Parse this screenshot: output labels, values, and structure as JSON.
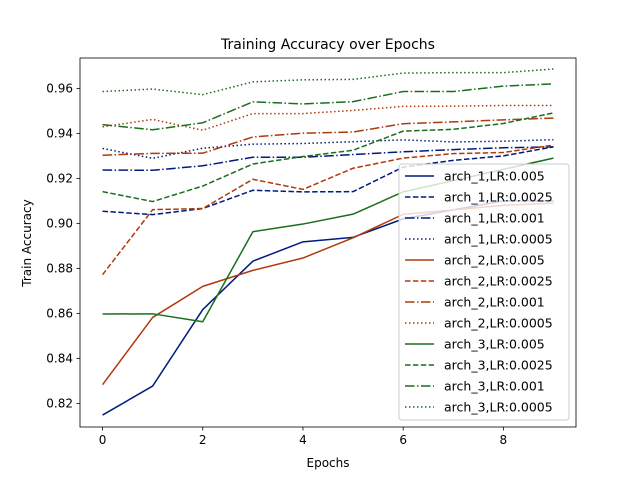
{
  "chart_data": {
    "type": "line",
    "title": "Training Accuracy over Epochs",
    "xlabel": "Epochs",
    "ylabel": "Train Accuracy",
    "xlim": [
      -0.45,
      9.45
    ],
    "ylim": [
      0.8095,
      0.9735
    ],
    "xticks": [
      0,
      2,
      4,
      6,
      8
    ],
    "yticks": [
      0.82,
      0.84,
      0.86,
      0.88,
      0.9,
      0.92,
      0.94,
      0.96
    ],
    "ytick_labels": [
      "0.82",
      "0.84",
      "0.86",
      "0.88",
      "0.90",
      "0.92",
      "0.94",
      "0.96"
    ],
    "grid": false,
    "legend_position": "lower-right",
    "x": [
      0,
      1,
      2,
      3,
      4,
      5,
      6,
      7,
      8,
      9
    ],
    "series": [
      {
        "name": "arch_1,LR:0.005",
        "color": "#001b7d",
        "style": "solid",
        "values": [
          0.8148,
          0.8277,
          0.8617,
          0.8832,
          0.8918,
          0.8938,
          0.902,
          0.906,
          0.91,
          0.91
        ]
      },
      {
        "name": "arch_1,LR:0.0025",
        "color": "#001b7d",
        "style": "dashed",
        "values": [
          0.9054,
          0.9039,
          0.9066,
          0.9147,
          0.914,
          0.9141,
          0.925,
          0.928,
          0.93,
          0.934
        ]
      },
      {
        "name": "arch_1,LR:0.001",
        "color": "#001b7d",
        "style": "dashdot",
        "values": [
          0.9237,
          0.9236,
          0.9256,
          0.9294,
          0.9294,
          0.9306,
          0.9318,
          0.9328,
          0.9336,
          0.934
        ]
      },
      {
        "name": "arch_1,LR:0.0005",
        "color": "#001b7d",
        "style": "dotted",
        "values": [
          0.9333,
          0.9289,
          0.9334,
          0.9352,
          0.9355,
          0.9363,
          0.9371,
          0.9362,
          0.9365,
          0.9372
        ]
      },
      {
        "name": "arch_2,LR:0.005",
        "color": "#ad3b0c",
        "style": "solid",
        "values": [
          0.8283,
          0.8582,
          0.872,
          0.8791,
          0.8846,
          0.8936,
          0.904,
          0.906,
          0.908,
          0.909
        ]
      },
      {
        "name": "arch_2,LR:0.0025",
        "color": "#ad3b0c",
        "style": "dashed",
        "values": [
          0.8772,
          0.9061,
          0.9066,
          0.9196,
          0.9151,
          0.9245,
          0.929,
          0.931,
          0.9315,
          0.9348
        ]
      },
      {
        "name": "arch_2,LR:0.001",
        "color": "#ad3b0c",
        "style": "dashdot",
        "values": [
          0.9303,
          0.9311,
          0.9312,
          0.9384,
          0.9401,
          0.9406,
          0.9443,
          0.9451,
          0.946,
          0.9468
        ]
      },
      {
        "name": "arch_2,LR:0.0005",
        "color": "#ad3b0c",
        "style": "dotted",
        "values": [
          0.9429,
          0.9462,
          0.9414,
          0.9488,
          0.9488,
          0.9502,
          0.952,
          0.9521,
          0.9524,
          0.9524
        ]
      },
      {
        "name": "arch_3,LR:0.005",
        "color": "#1a6e1e",
        "style": "solid",
        "values": [
          0.8597,
          0.8598,
          0.8563,
          0.8963,
          0.8997,
          0.9041,
          0.914,
          0.919,
          0.924,
          0.929
        ]
      },
      {
        "name": "arch_3,LR:0.0025",
        "color": "#1a6e1e",
        "style": "dashed",
        "values": [
          0.9141,
          0.9097,
          0.9166,
          0.9264,
          0.9297,
          0.9325,
          0.941,
          0.9418,
          0.9444,
          0.9491
        ]
      },
      {
        "name": "arch_3,LR:0.001",
        "color": "#1a6e1e",
        "style": "dashdot",
        "values": [
          0.9439,
          0.9416,
          0.9447,
          0.954,
          0.9531,
          0.9541,
          0.9586,
          0.9586,
          0.961,
          0.962
        ]
      },
      {
        "name": "arch_3,LR:0.0005",
        "color": "#1a6e1e",
        "style": "dotted",
        "values": [
          0.9586,
          0.9597,
          0.9572,
          0.9629,
          0.9638,
          0.964,
          0.9668,
          0.967,
          0.967,
          0.9686
        ]
      }
    ]
  }
}
